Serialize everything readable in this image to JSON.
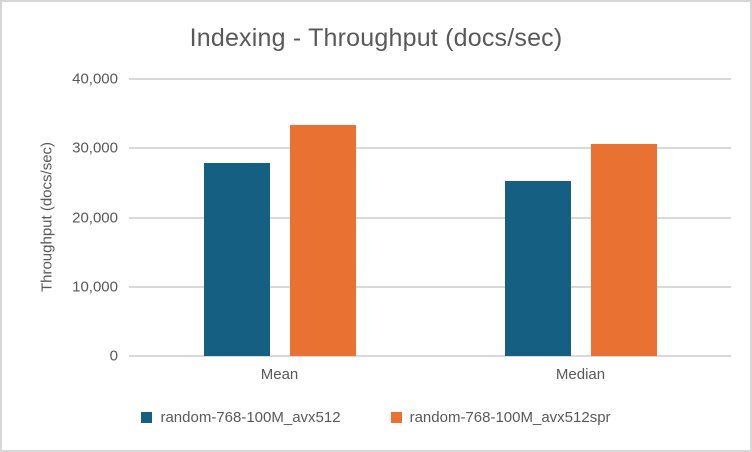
{
  "chart_data": {
    "type": "bar",
    "title": "Indexing - Throughput (docs/sec)",
    "xlabel": "",
    "ylabel": "Throughput (docs/sec)",
    "categories": [
      "Mean",
      "Median"
    ],
    "series": [
      {
        "name": "random-768-100M_avx512",
        "color": "#156082",
        "values": [
          27900,
          25300
        ]
      },
      {
        "name": "random-768-100M_avx512spr",
        "color": "#E97132",
        "values": [
          33400,
          30600
        ]
      }
    ],
    "ylim": [
      0,
      40000
    ],
    "yticks": [
      0,
      10000,
      20000,
      30000,
      40000
    ],
    "ytick_labels": [
      "0",
      "10,000",
      "20,000",
      "30,000",
      "40,000"
    ],
    "grid": true,
    "legend_position": "bottom",
    "colors": {
      "text": "#595959",
      "gridline": "#d9d9d9",
      "background": "#ffffff",
      "border": "#d6d6d6"
    }
  }
}
